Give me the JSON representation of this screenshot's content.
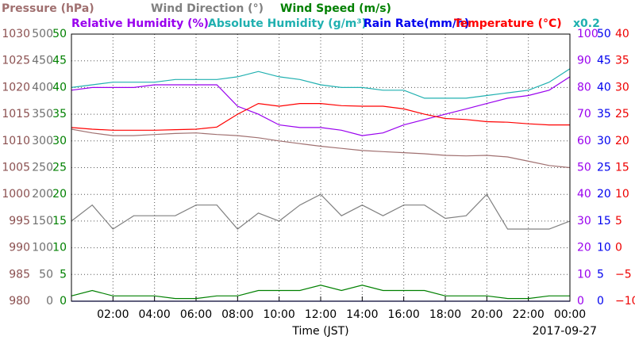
{
  "chart_data": {
    "type": "line",
    "x": [
      0,
      1,
      2,
      3,
      4,
      5,
      6,
      7,
      8,
      9,
      10,
      11,
      12,
      13,
      14,
      15,
      16,
      17,
      18,
      19,
      20,
      21,
      22,
      23,
      24
    ],
    "xlim": [
      0,
      24
    ],
    "xticks": [
      {
        "value": 2,
        "label": "02:00"
      },
      {
        "value": 4,
        "label": "04:00"
      },
      {
        "value": 6,
        "label": "06:00"
      },
      {
        "value": 8,
        "label": "08:00"
      },
      {
        "value": 10,
        "label": "10:00"
      },
      {
        "value": 12,
        "label": "12:00"
      },
      {
        "value": 14,
        "label": "14:00"
      },
      {
        "value": 16,
        "label": "16:00"
      },
      {
        "value": 18,
        "label": "18:00"
      },
      {
        "value": 20,
        "label": "20:00"
      },
      {
        "value": 22,
        "label": "22:00"
      },
      {
        "value": 24,
        "label": "00:00"
      }
    ],
    "x_label": "Time (JST)",
    "date": "2017-09-27",
    "grid": true,
    "series": [
      {
        "name": "Pressure (hPa)",
        "color": "#a07070",
        "tick_color": "#8b5050",
        "side": "left",
        "ylim": [
          980,
          1030
        ],
        "yticks": [
          980,
          985,
          990,
          995,
          1000,
          1005,
          1010,
          1015,
          1020,
          1025,
          1030
        ],
        "values": [
          1012.2,
          1011.5,
          1011.0,
          1011.0,
          1011.2,
          1011.4,
          1011.5,
          1011.2,
          1011.0,
          1010.6,
          1010.0,
          1009.5,
          1009.0,
          1008.6,
          1008.2,
          1008.0,
          1007.8,
          1007.6,
          1007.3,
          1007.2,
          1007.3,
          1007.0,
          1006.2,
          1005.4,
          1005.0
        ]
      },
      {
        "name": "Wind Direction (°)",
        "color": "#808080",
        "tick_color": "#707070",
        "side": "left",
        "ylim": [
          0,
          500
        ],
        "yticks": [
          0,
          50,
          100,
          150,
          200,
          250,
          300,
          350,
          400,
          450,
          500
        ],
        "values": [
          150,
          180,
          135,
          160,
          160,
          160,
          180,
          180,
          135,
          165,
          150,
          180,
          200,
          160,
          180,
          160,
          180,
          180,
          155,
          160,
          200,
          135,
          135,
          135,
          150
        ]
      },
      {
        "name": "Wind Speed (m/s)",
        "color": "#008000",
        "tick_color": "#008000",
        "side": "left",
        "ylim": [
          0,
          50
        ],
        "yticks": [
          0,
          5,
          10,
          15,
          20,
          25,
          30,
          35,
          40,
          45,
          50
        ],
        "values": [
          1,
          2,
          1,
          1,
          1,
          0.5,
          0.5,
          1,
          1,
          2,
          2,
          2,
          3,
          2,
          3,
          2,
          2,
          2,
          1,
          1,
          1,
          0.5,
          0.5,
          1,
          1
        ]
      },
      {
        "name": "Relative Humidity (%)",
        "color": "#9900ee",
        "tick_color": "#9900ee",
        "side": "right",
        "ylim": [
          0,
          100
        ],
        "yticks": [
          0,
          10,
          20,
          30,
          40,
          50,
          60,
          70,
          80,
          90,
          100
        ],
        "values": [
          79,
          80,
          80,
          80,
          81,
          81,
          81,
          81,
          73,
          70,
          66,
          65,
          65,
          64,
          62,
          63,
          66,
          68,
          70,
          72,
          74,
          76,
          77,
          79,
          84
        ]
      },
      {
        "name": "Absolute Humidity (g/m³)",
        "color": "#20b0b0",
        "tick_color": "#20b0b0",
        "side": "shared",
        "ylim": [
          0,
          100
        ],
        "axis_label": "x0.2",
        "values": [
          80,
          81,
          82,
          82,
          82,
          83,
          83,
          83,
          84,
          86,
          84,
          83,
          81,
          80,
          80,
          79,
          79,
          76,
          76,
          76,
          77,
          78,
          79,
          82,
          87
        ]
      },
      {
        "name": "Rain Rate(mm/h)",
        "color": "#0000ee",
        "tick_color": "#0000ee",
        "side": "right",
        "ylim": [
          0,
          50
        ],
        "yticks": [
          0,
          5,
          10,
          15,
          20,
          25,
          30,
          35,
          40,
          45,
          50
        ],
        "values": [
          0,
          0,
          0,
          0,
          0,
          0,
          0,
          0,
          0,
          0,
          0,
          0,
          0,
          0,
          0,
          0,
          0,
          0,
          0,
          0,
          0,
          0,
          0,
          0,
          0
        ]
      },
      {
        "name": "Temperature (°C)",
        "color": "#ff0000",
        "tick_color": "#ee0000",
        "side": "right",
        "ylim": [
          -10,
          40
        ],
        "yticks": [
          {
            "value": -10,
            "label": "−10"
          },
          {
            "value": -5,
            "label": "−5"
          },
          0,
          5,
          10,
          15,
          20,
          25,
          30,
          35,
          40
        ],
        "values": [
          22.5,
          22.2,
          22.0,
          22.0,
          22.0,
          22.1,
          22.2,
          22.6,
          25.0,
          27.0,
          26.5,
          27.0,
          27.0,
          26.6,
          26.5,
          26.5,
          26.0,
          25.0,
          24.2,
          24.0,
          23.6,
          23.5,
          23.2,
          23.0,
          23.0
        ]
      }
    ]
  }
}
